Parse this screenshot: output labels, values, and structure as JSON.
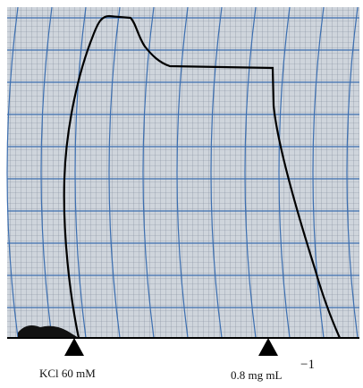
{
  "annotations": [
    {
      "label": "KCl 60 mM"
    },
    {
      "label": "0.8 mg mL",
      "superscript": "−1"
    }
  ]
}
